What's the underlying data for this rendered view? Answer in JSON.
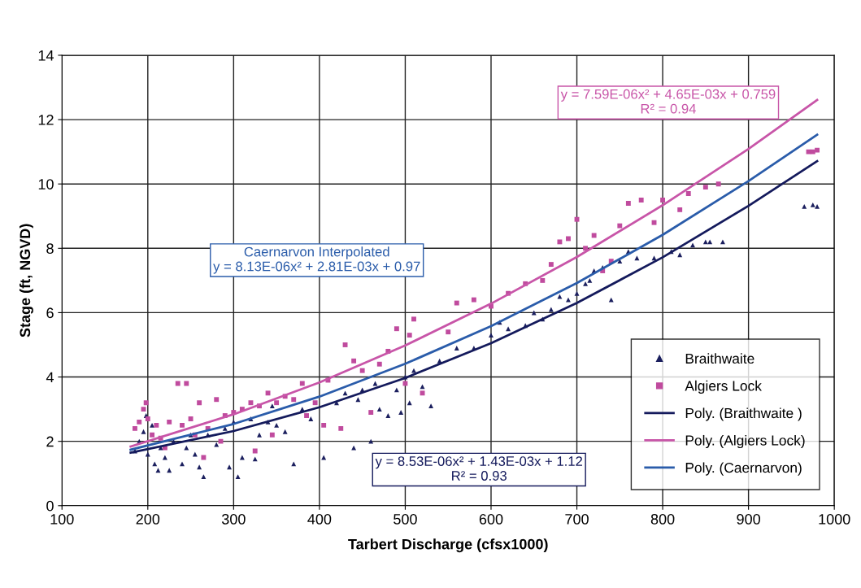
{
  "chart_data": {
    "type": "scatter",
    "xlabel": "Tarbert Discharge (cfsx1000)",
    "ylabel": "Stage (ft, NGVD)",
    "xlim": [
      100,
      1000
    ],
    "xticks": [
      100,
      200,
      300,
      400,
      500,
      600,
      700,
      800,
      900,
      1000
    ],
    "ylim": [
      0,
      14
    ],
    "yticks": [
      0,
      2,
      4,
      6,
      8,
      10,
      12,
      14
    ],
    "grid": true,
    "legend": "bottom right",
    "series": [
      {
        "name": "Braithwaite",
        "marker": "triangle",
        "color": "#1b1f5e",
        "x": [
          185,
          190,
          195,
          198,
          200,
          205,
          208,
          212,
          215,
          220,
          225,
          230,
          240,
          245,
          250,
          255,
          260,
          265,
          270,
          280,
          290,
          295,
          300,
          305,
          310,
          320,
          325,
          330,
          340,
          345,
          350,
          360,
          370,
          380,
          390,
          405,
          420,
          430,
          440,
          445,
          450,
          460,
          465,
          470,
          480,
          490,
          495,
          500,
          505,
          510,
          520,
          530,
          540,
          560,
          580,
          600,
          610,
          620,
          640,
          650,
          660,
          670,
          680,
          690,
          700,
          710,
          715,
          720,
          730,
          740,
          750,
          760,
          770,
          790,
          810,
          820,
          835,
          850,
          855,
          870,
          965,
          975,
          980
        ],
        "values": [
          1.7,
          2.0,
          2.3,
          2.8,
          1.6,
          2.5,
          1.3,
          1.1,
          1.8,
          1.5,
          1.1,
          2.0,
          1.3,
          1.8,
          2.2,
          1.6,
          1.2,
          0.9,
          2.2,
          1.9,
          2.4,
          1.2,
          2.6,
          0.9,
          1.5,
          2.7,
          1.45,
          2.2,
          2.6,
          3.1,
          2.5,
          2.3,
          1.3,
          3.0,
          2.7,
          1.5,
          3.2,
          3.5,
          1.8,
          3.3,
          3.6,
          2.0,
          3.8,
          3.0,
          2.8,
          3.6,
          2.9,
          4.0,
          3.2,
          4.2,
          3.7,
          3.1,
          4.5,
          4.9,
          4.9,
          5.3,
          5.7,
          5.5,
          5.6,
          6.0,
          5.8,
          6.1,
          6.5,
          6.4,
          6.6,
          6.9,
          7.0,
          7.3,
          7.4,
          6.4,
          7.6,
          7.9,
          7.7,
          7.7,
          7.9,
          7.8,
          8.1,
          8.2,
          8.2,
          8.2,
          9.3,
          9.35,
          9.3
        ]
      },
      {
        "name": "Algiers Lock",
        "marker": "square",
        "color": "#c04b9e",
        "x": [
          185,
          190,
          195,
          198,
          200,
          205,
          210,
          215,
          220,
          225,
          235,
          240,
          245,
          250,
          255,
          260,
          265,
          270,
          280,
          285,
          290,
          300,
          310,
          320,
          325,
          330,
          340,
          345,
          350,
          360,
          370,
          380,
          385,
          395,
          405,
          410,
          425,
          430,
          440,
          450,
          460,
          470,
          480,
          490,
          500,
          505,
          510,
          520,
          550,
          560,
          580,
          600,
          620,
          640,
          660,
          670,
          680,
          690,
          700,
          710,
          720,
          730,
          740,
          750,
          760,
          775,
          790,
          800,
          820,
          830,
          850,
          865,
          970,
          975,
          980
        ],
        "values": [
          2.4,
          2.6,
          3.0,
          3.2,
          2.7,
          2.2,
          2.5,
          2.1,
          1.8,
          2.6,
          3.8,
          2.5,
          3.8,
          2.7,
          2.2,
          3.2,
          1.5,
          2.4,
          3.3,
          2.0,
          2.8,
          2.9,
          3.0,
          3.2,
          1.7,
          3.1,
          3.5,
          2.2,
          3.2,
          3.4,
          3.3,
          3.8,
          2.8,
          3.2,
          2.5,
          3.9,
          2.4,
          5.0,
          4.5,
          4.2,
          2.9,
          4.4,
          4.8,
          5.5,
          3.8,
          5.3,
          5.8,
          3.5,
          5.4,
          6.3,
          6.4,
          6.2,
          6.6,
          6.9,
          7.0,
          7.5,
          8.2,
          8.3,
          8.9,
          8.0,
          8.4,
          7.3,
          7.6,
          8.7,
          9.4,
          9.5,
          8.8,
          9.5,
          9.2,
          9.7,
          9.9,
          10.0,
          11.0,
          11.0,
          11.05
        ]
      },
      {
        "name": "Poly. (Braithwaite )",
        "type": "line",
        "marker": "none",
        "color": "#141a5c",
        "x": [
          180,
          300,
          400,
          500,
          600,
          700,
          800,
          900,
          980
        ],
        "values": [
          1.65,
          2.32,
          3.06,
          3.97,
          5.05,
          6.3,
          7.72,
          9.32,
          10.71
        ]
      },
      {
        "name": "Poly. (Algiers Lock)",
        "type": "line",
        "marker": "none",
        "color": "#c855a8",
        "x": [
          180,
          300,
          400,
          500,
          600,
          700,
          800,
          900,
          980
        ],
        "values": [
          1.84,
          2.84,
          3.83,
          4.98,
          6.28,
          7.73,
          9.34,
          11.09,
          12.61
        ]
      },
      {
        "name": "Poly. (Caernarvon)",
        "type": "line",
        "marker": "none",
        "color": "#2a5caa",
        "x": [
          180,
          300,
          400,
          500,
          600,
          700,
          800,
          900,
          980
        ],
        "values": [
          1.74,
          2.54,
          3.39,
          4.41,
          5.58,
          6.92,
          8.42,
          10.09,
          11.53
        ]
      }
    ],
    "annotations": [
      "Caernarvon Interpolated\ny = 8.13E-06x² + 2.81E-03x + 0.97",
      "y = 7.59E-06x² + 4.65E-03x + 0.759\nR² = 0.94",
      "y = 8.53E-06x² + 1.43E-03x + 1.12\nR² = 0.93"
    ]
  }
}
